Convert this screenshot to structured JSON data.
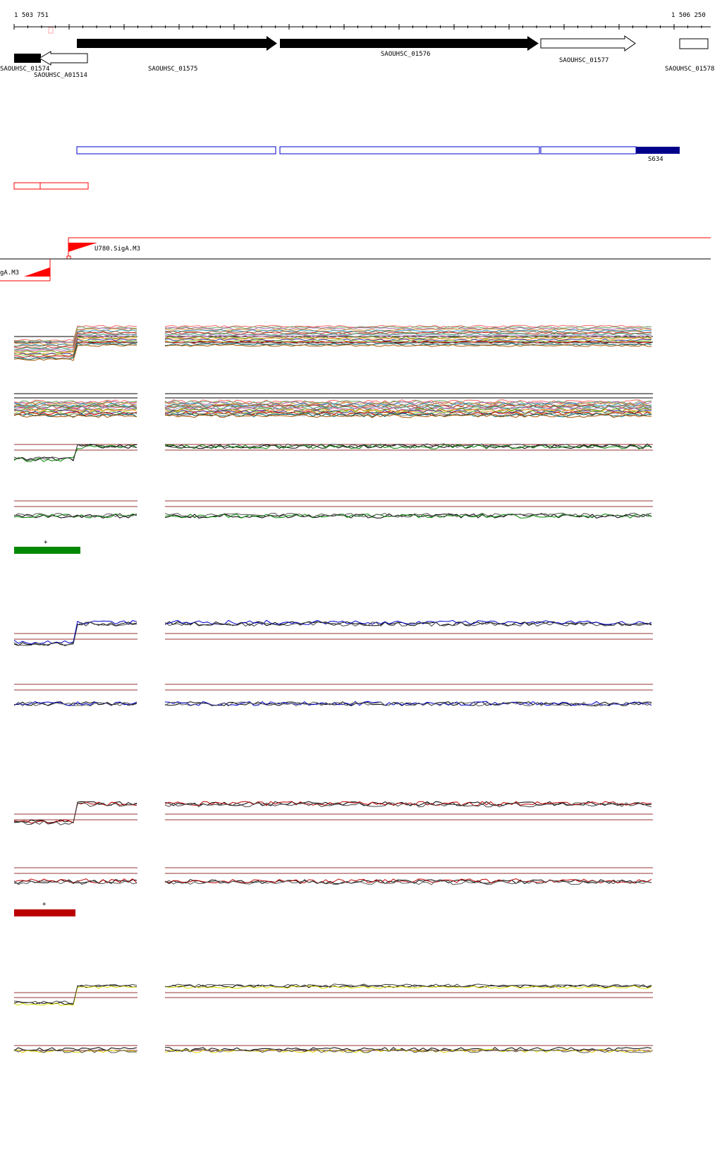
{
  "coords": {
    "start": "1 503 751",
    "end": "1 506 250"
  },
  "genes": [
    {
      "label": "SAOUHSC_01574",
      "strand": "+",
      "fill": "#000000"
    },
    {
      "label": "SAOUHSC_A01514",
      "strand": "-",
      "fill": "#ffffff"
    },
    {
      "label": "SAOUHSC_01575",
      "strand": "+",
      "fill": "#000000"
    },
    {
      "label": "SAOUHSC_01576",
      "strand": "+",
      "fill": "#000000"
    },
    {
      "label": "SAOUHSC_01577",
      "strand": "+",
      "fill": "#ffffff"
    },
    {
      "label": "SAOUHSC_01578",
      "strand": "+",
      "fill": "#ffffff"
    }
  ],
  "segments": {
    "highlight_label": "S634",
    "outline_color": "#0000cc",
    "fill_color": "#00008b"
  },
  "promoter_boxes": {
    "color": "#ff0000"
  },
  "sigma": {
    "u780_label": "U780.SigA.M3",
    "left_label": "gA.M3",
    "color": "#ff0000"
  },
  "conditions": [
    {
      "name": "green",
      "color": "#008800",
      "bar_label": "+"
    },
    {
      "name": "blue",
      "color": "#0000cc"
    },
    {
      "name": "red",
      "color": "#bb0000",
      "bar_label": "+"
    },
    {
      "name": "yellow",
      "color": "#dddd00"
    }
  ]
}
